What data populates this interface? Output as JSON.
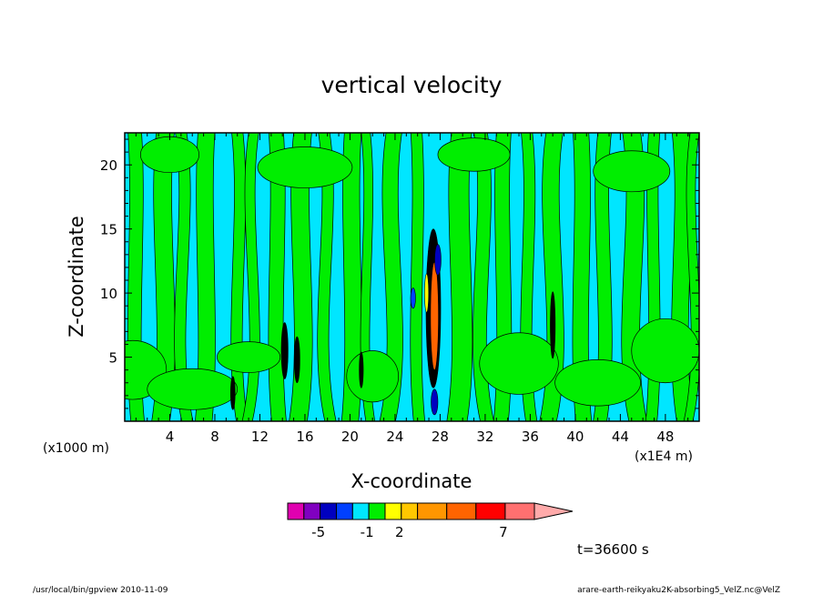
{
  "chart_data": {
    "type": "heatmap",
    "title": "vertical velocity",
    "xlabel": "X-coordinate",
    "ylabel": "Z-coordinate",
    "x_unit_left": "(x1000 m)",
    "x_unit_right": "(x1E4 m)",
    "xlim": [
      0,
      51
    ],
    "ylim": [
      0,
      22.5
    ],
    "x_ticks": [
      "4",
      "8",
      "12",
      "16",
      "20",
      "24",
      "28",
      "32",
      "36",
      "40",
      "44",
      "48"
    ],
    "y_ticks": [
      "5",
      "10",
      "15",
      "20"
    ],
    "time_label": "t=36600 s",
    "background_color": "#00e6ff",
    "positive_color": "#00ee00",
    "colorbar": {
      "colors": [
        "#e000b0",
        "#8000c0",
        "#0000c0",
        "#0040ff",
        "#00e6ff",
        "#00ee00",
        "#ffff00",
        "#ffc800",
        "#ff9600",
        "#ff6400",
        "#ff0000",
        "#ff7070",
        "#ffaaaa"
      ],
      "labels": [
        "-5",
        "-1",
        "2",
        "7"
      ]
    },
    "green_bands": [
      {
        "x": 0.3,
        "w": 1.2
      },
      {
        "x": 2.8,
        "w": 1.6
      },
      {
        "x": 4.5,
        "w": 1.0
      },
      {
        "x": 6.5,
        "w": 1.5
      },
      {
        "x": 9.5,
        "w": 1.0
      },
      {
        "x": 11.0,
        "w": 0.9
      },
      {
        "x": 12.8,
        "w": 1.3
      },
      {
        "x": 15.0,
        "w": 1.6
      },
      {
        "x": 17.2,
        "w": 1.0
      },
      {
        "x": 19.5,
        "w": 1.5
      },
      {
        "x": 21.0,
        "w": 0.8
      },
      {
        "x": 23.2,
        "w": 1.4
      },
      {
        "x": 25.4,
        "w": 1.0
      },
      {
        "x": 29.0,
        "w": 1.8
      },
      {
        "x": 31.0,
        "w": 1.2
      },
      {
        "x": 33.0,
        "w": 1.3
      },
      {
        "x": 35.2,
        "w": 1.0
      },
      {
        "x": 37.4,
        "w": 1.5
      },
      {
        "x": 39.8,
        "w": 1.4
      },
      {
        "x": 42.0,
        "w": 1.2
      },
      {
        "x": 44.2,
        "w": 1.6
      },
      {
        "x": 46.5,
        "w": 1.0
      },
      {
        "x": 48.6,
        "w": 1.5
      },
      {
        "x": 50.2,
        "w": 0.8
      }
    ],
    "green_blobs": [
      {
        "x": 0.7,
        "y": 4.0,
        "rx": 3.0,
        "ry": 2.3
      },
      {
        "x": 6.0,
        "y": 2.5,
        "rx": 4.0,
        "ry": 1.6
      },
      {
        "x": 11.0,
        "y": 5.0,
        "rx": 2.8,
        "ry": 1.2
      },
      {
        "x": 35.0,
        "y": 4.5,
        "rx": 3.5,
        "ry": 2.4
      },
      {
        "x": 42.0,
        "y": 3.0,
        "rx": 3.8,
        "ry": 1.8
      },
      {
        "x": 48.0,
        "y": 5.5,
        "rx": 3.0,
        "ry": 2.5
      },
      {
        "x": 22.0,
        "y": 3.5,
        "rx": 2.3,
        "ry": 2.0
      },
      {
        "x": 4.0,
        "y": 20.8,
        "rx": 2.6,
        "ry": 1.4
      },
      {
        "x": 16.0,
        "y": 19.8,
        "rx": 4.2,
        "ry": 1.6
      },
      {
        "x": 31.0,
        "y": 20.8,
        "rx": 3.2,
        "ry": 1.3
      },
      {
        "x": 45.0,
        "y": 19.5,
        "rx": 3.4,
        "ry": 1.6
      }
    ],
    "convective_cells": [
      {
        "x": 27.4,
        "y": 8.8,
        "rx": 0.65,
        "ry": 6.2,
        "c": "#000000"
      },
      {
        "x": 27.5,
        "y": 8.2,
        "rx": 0.35,
        "ry": 4.2,
        "c": "#ff6400"
      },
      {
        "x": 26.8,
        "y": 10.0,
        "rx": 0.18,
        "ry": 1.5,
        "c": "#ffff00"
      },
      {
        "x": 27.8,
        "y": 12.6,
        "rx": 0.28,
        "ry": 1.2,
        "c": "#0000c0"
      },
      {
        "x": 25.6,
        "y": 9.6,
        "rx": 0.22,
        "ry": 0.8,
        "c": "#0040ff"
      },
      {
        "x": 27.5,
        "y": 1.5,
        "rx": 0.3,
        "ry": 1.0,
        "c": "#0000c0"
      },
      {
        "x": 14.2,
        "y": 5.5,
        "rx": 0.3,
        "ry": 2.2,
        "c": "#000000"
      },
      {
        "x": 15.3,
        "y": 4.8,
        "rx": 0.25,
        "ry": 1.8,
        "c": "#000000"
      },
      {
        "x": 9.6,
        "y": 2.2,
        "rx": 0.2,
        "ry": 1.3,
        "c": "#000000"
      },
      {
        "x": 38.0,
        "y": 7.5,
        "rx": 0.22,
        "ry": 2.6,
        "c": "#000000"
      },
      {
        "x": 21.0,
        "y": 4.0,
        "rx": 0.18,
        "ry": 1.4,
        "c": "#000000"
      }
    ]
  },
  "footer": {
    "left": "/usr/local/bin/gpview  2010-11-09",
    "right": "arare-earth-reikyaku2K-absorbing5_VelZ.nc@VelZ"
  }
}
